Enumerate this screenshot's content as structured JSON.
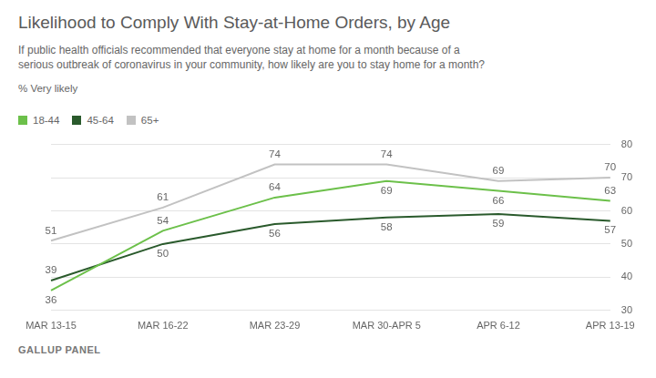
{
  "chart_data": {
    "type": "line",
    "title": "Likelihood to Comply With Stay-at-Home Orders, by Age",
    "subtitle": "If public health officials recommended that everyone stay at home for a month because of a serious outbreak of coronavirus in your community, how likely are you to stay home for a month?",
    "y_label": "% Very likely",
    "source": "GALLUP PANEL",
    "categories": [
      "MAR 13-15",
      "MAR 16-22",
      "MAR 23-29",
      "MAR 30-APR 5",
      "APR 6-12",
      "APR 13-19"
    ],
    "series": [
      {
        "name": "18-44",
        "color": "#6cc04a",
        "values": [
          36,
          54,
          64,
          69,
          66,
          63
        ]
      },
      {
        "name": "45-64",
        "color": "#2a5a2c",
        "values": [
          39,
          50,
          56,
          58,
          59,
          57
        ]
      },
      {
        "name": "65+",
        "color": "#c2c2c2",
        "values": [
          51,
          61,
          74,
          74,
          69,
          70
        ]
      }
    ],
    "ylim": [
      30,
      80
    ],
    "yticks": [
      30,
      40,
      50,
      60,
      70,
      80
    ],
    "grid": true,
    "legend": "top-left",
    "data_labels": true
  }
}
